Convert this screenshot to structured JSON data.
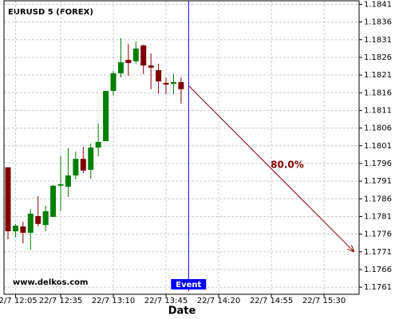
{
  "chart_data": {
    "type": "candlestick",
    "title": "EURUSD 5 (FOREX)",
    "watermark": "www.delkos.com",
    "x_label": "Date",
    "categories": [
      null,
      "22/7 12:05",
      null,
      null,
      null,
      null,
      null,
      "22/7 12:35",
      null,
      null,
      null,
      null,
      null,
      null,
      "22/7 13:10",
      null,
      null,
      null,
      null,
      null,
      null,
      "22/7 13:45",
      null,
      null,
      null,
      null,
      null,
      null,
      "22/7 14:20",
      null,
      null,
      null,
      null,
      null,
      null,
      "22/7 14:55",
      null,
      null,
      null,
      null,
      null,
      null,
      "22/7 15:30",
      null,
      null,
      null,
      null
    ],
    "open": [
      1.17949,
      1.17768,
      1.17782,
      1.17764,
      1.17811,
      1.17786,
      1.17809,
      1.17897,
      1.17894,
      1.17926,
      1.17973,
      1.17942,
      1.18005,
      1.18023,
      1.18165,
      1.18215,
      1.18253,
      1.18249,
      1.18294,
      1.18237,
      1.18224,
      1.18188,
      1.18185,
      1.1819,
      null,
      null,
      null,
      null,
      null,
      null,
      null,
      null,
      null,
      null,
      null,
      null,
      null,
      null,
      null,
      null,
      null,
      null,
      null,
      null,
      null,
      null,
      null
    ],
    "high": [
      1.17949,
      1.17789,
      1.17795,
      1.17831,
      1.17867,
      1.1784,
      1.17899,
      1.17982,
      1.18003,
      1.17994,
      1.18007,
      1.18016,
      1.18073,
      1.18165,
      1.18222,
      1.18314,
      1.18298,
      1.18305,
      1.18296,
      1.18271,
      1.18242,
      1.18203,
      1.18213,
      1.18203,
      null,
      null,
      null,
      null,
      null,
      null,
      null,
      null,
      null,
      null,
      null,
      null,
      null,
      null,
      null,
      null,
      null,
      null,
      null,
      null,
      null,
      null,
      null
    ],
    "low": [
      1.17746,
      1.17752,
      1.17734,
      1.17716,
      1.17782,
      1.17768,
      1.17809,
      1.17825,
      1.17865,
      1.17915,
      1.17933,
      1.17917,
      1.1798,
      1.18023,
      1.18152,
      1.18203,
      1.18208,
      1.18242,
      1.18213,
      1.1817,
      1.18158,
      1.18156,
      1.18156,
      1.18129,
      null,
      null,
      null,
      null,
      null,
      null,
      null,
      null,
      null,
      null,
      null,
      null,
      null,
      null,
      null,
      null,
      null,
      null,
      null,
      null,
      null,
      null,
      null
    ],
    "close": [
      1.17768,
      1.17784,
      1.17764,
      1.17818,
      1.17789,
      1.17825,
      1.17897,
      1.17901,
      1.17926,
      1.17973,
      1.1794,
      1.18005,
      1.18021,
      1.18165,
      1.18215,
      1.18246,
      1.18244,
      1.18285,
      1.18237,
      1.18231,
      1.18192,
      1.18183,
      1.1819,
      1.1817,
      null,
      null,
      null,
      null,
      null,
      null,
      null,
      null,
      null,
      null,
      null,
      null,
      null,
      null,
      null,
      null,
      null,
      null,
      null,
      null,
      null,
      null,
      null
    ],
    "up_color": "#008000",
    "down_color": "#800000",
    "ylim": [
      1.1759,
      1.1842
    ],
    "yticks": [
      1.1761,
      1.1766,
      1.1771,
      1.1776,
      1.1781,
      1.1786,
      1.1791,
      1.1796,
      1.1801,
      1.1806,
      1.1811,
      1.1816,
      1.1821,
      1.1826,
      1.1831,
      1.1836,
      1.1841
    ],
    "grid": true,
    "event": {
      "label": "Event",
      "index": 24,
      "color": "#0000ff"
    },
    "forecast": {
      "label": "80.0%",
      "from": [
        24,
        1.1818
      ],
      "to": [
        46,
        1.1771
      ],
      "color": "#800000"
    }
  }
}
